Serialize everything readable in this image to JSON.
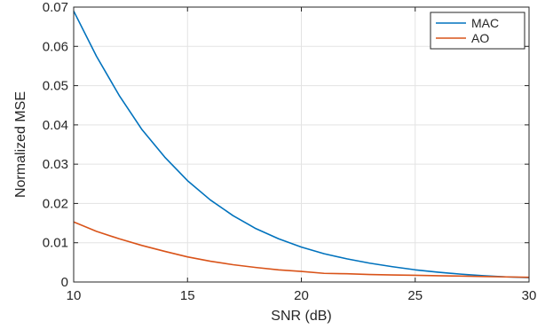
{
  "chart_data": {
    "type": "line",
    "xlabel": "SNR (dB)",
    "ylabel": "Normalized MSE",
    "xlim": [
      10,
      30
    ],
    "ylim": [
      0,
      0.07
    ],
    "xticks": [
      10,
      15,
      20,
      25,
      30
    ],
    "yticks": [
      0,
      0.01,
      0.02,
      0.03,
      0.04,
      0.05,
      0.06,
      0.07
    ],
    "xtick_labels": [
      "10",
      "15",
      "20",
      "25",
      "30"
    ],
    "ytick_labels": [
      "0",
      "0.01",
      "0.02",
      "0.03",
      "0.04",
      "0.05",
      "0.06",
      "0.07"
    ],
    "grid": true,
    "legend_position": "top-right",
    "x": [
      10,
      11,
      12,
      13,
      14,
      15,
      16,
      17,
      18,
      19,
      20,
      21,
      22,
      23,
      24,
      25,
      26,
      27,
      28,
      29,
      30
    ],
    "series": [
      {
        "name": "MAC",
        "color": "#0072BD",
        "values": [
          0.069,
          0.0575,
          0.0475,
          0.0388,
          0.0318,
          0.0258,
          0.0209,
          0.0169,
          0.0136,
          0.011,
          0.0089,
          0.0072,
          0.0059,
          0.0048,
          0.0039,
          0.0031,
          0.0025,
          0.002,
          0.0016,
          0.0013,
          0.0011
        ]
      },
      {
        "name": "AO",
        "color": "#D95319",
        "values": [
          0.0153,
          0.0129,
          0.011,
          0.0093,
          0.0078,
          0.0064,
          0.0053,
          0.0044,
          0.0037,
          0.0031,
          0.0027,
          0.0022,
          0.0021,
          0.0019,
          0.0018,
          0.0017,
          0.0016,
          0.0015,
          0.0014,
          0.0013,
          0.0012
        ]
      }
    ]
  }
}
